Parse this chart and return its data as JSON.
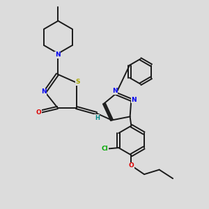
{
  "bg_color": "#dcdcdc",
  "bond_color": "#1a1a1a",
  "bond_lw": 1.4,
  "dbl_off": 0.055,
  "N_col": "#0000ee",
  "S_col": "#aaaa00",
  "O_col": "#dd0000",
  "Cl_col": "#00aa00",
  "H_col": "#008888",
  "C_col": "#1a1a1a",
  "fs": 6.5,
  "xlim": [
    0,
    10
  ],
  "ylim": [
    0,
    10
  ]
}
